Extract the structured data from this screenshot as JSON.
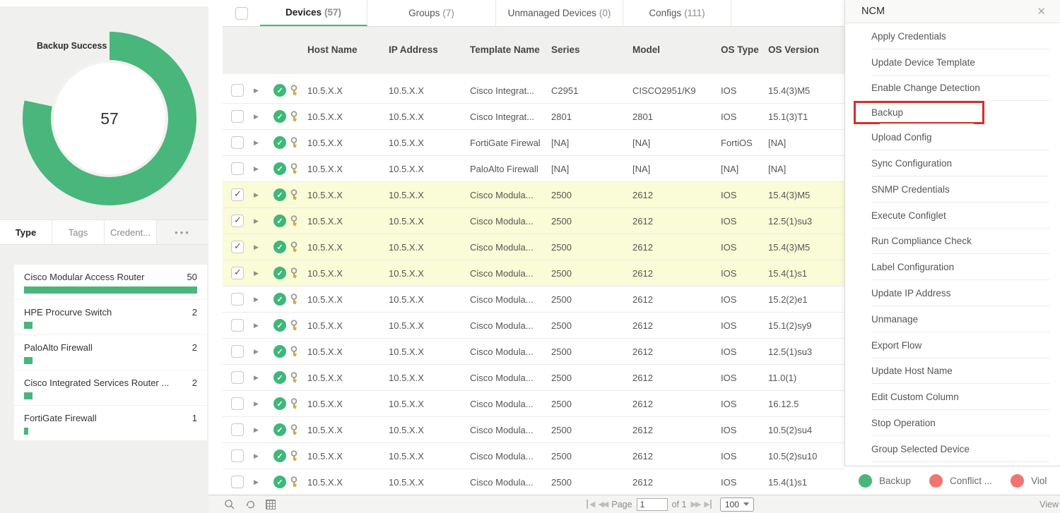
{
  "sidebar": {
    "chart_data": {
      "type": "donut",
      "title": "Backup Success",
      "value": "57",
      "percent_filled": 78,
      "arc_color": "#49b67b"
    },
    "tabs": [
      {
        "label": "Type",
        "active": true
      },
      {
        "label": "Tags",
        "active": false
      },
      {
        "label": "Credent...",
        "active": false
      },
      {
        "label": "•••",
        "active": false,
        "more": true
      }
    ],
    "type_list": [
      {
        "name": "Cisco Modular Access Router",
        "count": "50",
        "bar": 100
      },
      {
        "name": "HPE Procurve Switch",
        "count": "2",
        "bar": 5
      },
      {
        "name": "PaloAlto Firewall",
        "count": "2",
        "bar": 5
      },
      {
        "name": "Cisco Integrated Services Router ...",
        "count": "2",
        "bar": 5
      },
      {
        "name": "FortiGate Firewall",
        "count": "1",
        "bar": 2.5
      }
    ]
  },
  "main": {
    "tabs": [
      {
        "label": "Devices",
        "count": "(57)",
        "active": true
      },
      {
        "label": "Groups",
        "count": "(7)",
        "active": false
      },
      {
        "label": "Unmanaged Devices",
        "count": "(0)",
        "active": false
      },
      {
        "label": "Configs",
        "count": "(111)",
        "active": false
      }
    ],
    "columns": {
      "host": "Host Name",
      "ip": "IP Address",
      "template": "Template Name",
      "series": "Series",
      "model": "Model",
      "os_type": "OS Type",
      "os_version": "OS Version"
    },
    "rows": [
      {
        "host": "10.5.X.X",
        "ip": "10.5.X.X",
        "template": "Cisco Integrat...",
        "series": "C2951",
        "model": "CISCO2951/K9",
        "os_type": "IOS",
        "os_version": "15.4(3)M5",
        "checked": false
      },
      {
        "host": "10.5.X.X",
        "ip": "10.5.X.X",
        "template": "Cisco Integrat...",
        "series": "2801",
        "model": "2801",
        "os_type": "IOS",
        "os_version": "15.1(3)T1",
        "checked": false
      },
      {
        "host": "10.5.X.X",
        "ip": "10.5.X.X",
        "template": "FortiGate Firewal",
        "series": "[NA]",
        "model": "[NA]",
        "os_type": "FortiOS",
        "os_version": "[NA]",
        "checked": false
      },
      {
        "host": "10.5.X.X",
        "ip": "10.5.X.X",
        "template": "PaloAlto Firewall",
        "series": "[NA]",
        "model": "[NA]",
        "os_type": "[NA]",
        "os_version": "[NA]",
        "checked": false
      },
      {
        "host": "10.5.X.X",
        "ip": "10.5.X.X",
        "template": "Cisco Modula...",
        "series": "2500",
        "model": "2612",
        "os_type": "IOS",
        "os_version": "15.4(3)M5",
        "checked": true
      },
      {
        "host": "10.5.X.X",
        "ip": "10.5.X.X",
        "template": "Cisco Modula...",
        "series": "2500",
        "model": "2612",
        "os_type": "IOS",
        "os_version": "12.5(1)su3",
        "checked": true
      },
      {
        "host": "10.5.X.X",
        "ip": "10.5.X.X",
        "template": "Cisco Modula...",
        "series": "2500",
        "model": "2612",
        "os_type": "IOS",
        "os_version": "15.4(3)M5",
        "checked": true
      },
      {
        "host": "10.5.X.X",
        "ip": "10.5.X.X",
        "template": "Cisco Modula...",
        "series": "2500",
        "model": "2612",
        "os_type": "IOS",
        "os_version": "15.4(1)s1",
        "checked": true
      },
      {
        "host": "10.5.X.X",
        "ip": "10.5.X.X",
        "template": "Cisco Modula...",
        "series": "2500",
        "model": "2612",
        "os_type": "IOS",
        "os_version": "15.2(2)e1",
        "checked": false
      },
      {
        "host": "10.5.X.X",
        "ip": "10.5.X.X",
        "template": "Cisco Modula...",
        "series": "2500",
        "model": "2612",
        "os_type": "IOS",
        "os_version": "15.1(2)sy9",
        "checked": false
      },
      {
        "host": "10.5.X.X",
        "ip": "10.5.X.X",
        "template": "Cisco Modula...",
        "series": "2500",
        "model": "2612",
        "os_type": "IOS",
        "os_version": "12.5(1)su3",
        "checked": false
      },
      {
        "host": "10.5.X.X",
        "ip": "10.5.X.X",
        "template": "Cisco Modula...",
        "series": "2500",
        "model": "2612",
        "os_type": "IOS",
        "os_version": "11.0(1)",
        "checked": false
      },
      {
        "host": "10.5.X.X",
        "ip": "10.5.X.X",
        "template": "Cisco Modula...",
        "series": "2500",
        "model": "2612",
        "os_type": "IOS",
        "os_version": "16.12.5",
        "checked": false
      },
      {
        "host": "10.5.X.X",
        "ip": "10.5.X.X",
        "template": "Cisco Modula...",
        "series": "2500",
        "model": "2612",
        "os_type": "IOS",
        "os_version": "10.5(2)su4",
        "checked": false
      },
      {
        "host": "10.5.X.X",
        "ip": "10.5.X.X",
        "template": "Cisco Modula...",
        "series": "2500",
        "model": "2612",
        "os_type": "IOS",
        "os_version": "10.5(2)su10",
        "checked": false
      },
      {
        "host": "10.5.X.X",
        "ip": "10.5.X.X",
        "template": "Cisco Modula...",
        "series": "2500",
        "model": "2612",
        "os_type": "IOS",
        "os_version": "15.4(1)s1",
        "checked": false
      }
    ],
    "footer": {
      "page_label": "Page",
      "page_value": "1",
      "of_label": "of 1",
      "page_size": "100"
    }
  },
  "ncm_panel": {
    "title": "NCM",
    "close_glyph": "✕",
    "items": [
      {
        "label": "Apply Credentials",
        "highlight": false
      },
      {
        "label": "Update Device Template",
        "highlight": false
      },
      {
        "label": "Enable Change Detection",
        "highlight": false
      },
      {
        "label": "Backup",
        "highlight": true
      },
      {
        "label": "Upload Config",
        "highlight": false
      },
      {
        "label": "Sync Configuration",
        "highlight": false
      },
      {
        "label": "SNMP Credentials",
        "highlight": false
      },
      {
        "label": "Execute Configlet",
        "highlight": false
      },
      {
        "label": "Run Compliance Check",
        "highlight": false
      },
      {
        "label": "Label Configuration",
        "highlight": false
      },
      {
        "label": "Update IP Address",
        "highlight": false
      },
      {
        "label": "Unmanage",
        "highlight": false
      },
      {
        "label": "Export Flow",
        "highlight": false
      },
      {
        "label": "Update Host Name",
        "highlight": false
      },
      {
        "label": "Edit Custom Column",
        "highlight": false
      },
      {
        "label": "Stop Operation",
        "highlight": false
      },
      {
        "label": "Group Selected Device",
        "highlight": false
      }
    ]
  },
  "legend": {
    "items": [
      {
        "label": "Backup",
        "type": "check"
      },
      {
        "label": "Conflict ...",
        "type": "cross"
      },
      {
        "label": "Viol",
        "type": "cross"
      }
    ]
  },
  "status_bar": {
    "view_label": "View"
  }
}
